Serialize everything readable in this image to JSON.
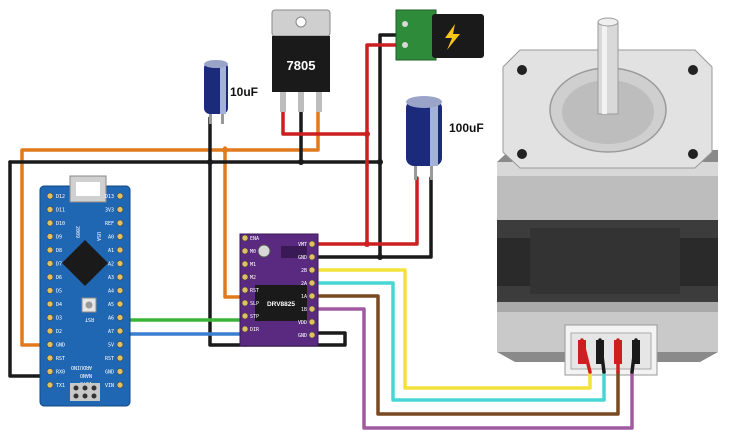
{
  "components": {
    "regulator": {
      "label": "7805"
    },
    "cap_small": {
      "label": "10uF"
    },
    "cap_large": {
      "label": "100uF"
    },
    "driver": {
      "label": "DRV8825",
      "pins_left": [
        "ENA",
        "M0",
        "M1",
        "M2",
        "RST",
        "SLP",
        "STP",
        "DIR"
      ],
      "pins_right": [
        "VMT",
        "GND",
        "2B",
        "2A",
        "1A",
        "1B",
        "VDD",
        "GND"
      ]
    },
    "arduino": {
      "board_name": "ARDUINO",
      "model": "NANO",
      "version": "V3.0",
      "year": "2009",
      "logo_text": "USA",
      "pins_left": [
        "D12",
        "D11",
        "D10",
        "D9",
        "D8",
        "D7",
        "D6",
        "D5",
        "D4",
        "D3",
        "D2",
        "GND",
        "RST",
        "RX0",
        "TX1"
      ],
      "pins_right": [
        "D13",
        "3V3",
        "REF",
        "A0",
        "A1",
        "A2",
        "A3",
        "A4",
        "A5",
        "A6",
        "A7",
        "5V",
        "RST",
        "GND",
        "VIN"
      ],
      "reset_label": "RST"
    }
  },
  "colors": {
    "wire_red": "#cc1f1f",
    "wire_black": "#1a1a1a",
    "wire_orange": "#e07a1c",
    "wire_green": "#3cb43c",
    "wire_blue": "#3a7fd0",
    "wire_yellow": "#f3e23a",
    "wire_cyan": "#46d6d6",
    "wire_brown": "#7a4a22",
    "wire_purple": "#a05aa0",
    "arduino_blue": "#1f67b3",
    "driver_purple": "#5a2a80",
    "power_jack_green": "#2e8b3a"
  }
}
